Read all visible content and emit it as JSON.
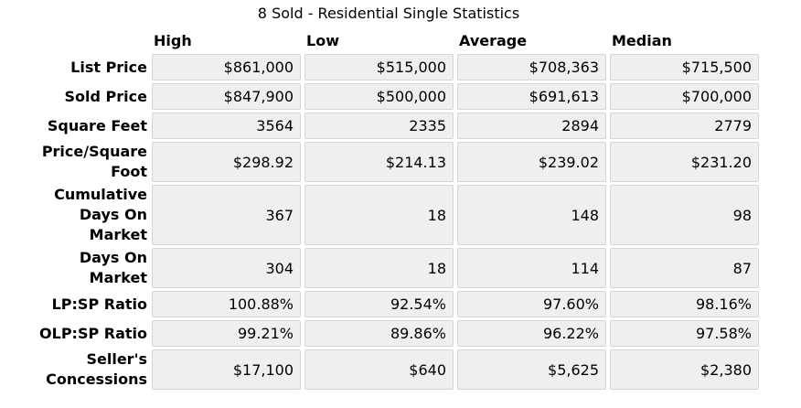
{
  "title": "8 Sold - Residential Single Statistics",
  "colors": {
    "cell_bg": "#efefef",
    "cell_border": "#d5d5d5",
    "text": "#000000",
    "page_bg": "#ffffff"
  },
  "chart_data": {
    "type": "table",
    "title": "8 Sold - Residential Single Statistics",
    "sold_count": "8",
    "columns": [
      "High",
      "Low",
      "Average",
      "Median"
    ],
    "rows": [
      {
        "label": "List Price",
        "values": [
          "$861,000",
          "$515,000",
          "$708,363",
          "$715,500"
        ]
      },
      {
        "label": "Sold Price",
        "values": [
          "$847,900",
          "$500,000",
          "$691,613",
          "$700,000"
        ]
      },
      {
        "label": "Square Feet",
        "values": [
          "3564",
          "2335",
          "2894",
          "2779"
        ]
      },
      {
        "label": "Price/Square\nFoot",
        "values": [
          "$298.92",
          "$214.13",
          "$239.02",
          "$231.20"
        ]
      },
      {
        "label": "Cumulative\nDays On\nMarket",
        "values": [
          "367",
          "18",
          "148",
          "98"
        ]
      },
      {
        "label": "Days On\nMarket",
        "values": [
          "304",
          "18",
          "114",
          "87"
        ]
      },
      {
        "label": "LP:SP Ratio",
        "values": [
          "100.88%",
          "92.54%",
          "97.60%",
          "98.16%"
        ]
      },
      {
        "label": "OLP:SP Ratio",
        "values": [
          "99.21%",
          "89.86%",
          "96.22%",
          "97.58%"
        ]
      },
      {
        "label": "Seller's\nConcessions",
        "values": [
          "$17,100",
          "$640",
          "$5,625",
          "$2,380"
        ]
      }
    ]
  }
}
